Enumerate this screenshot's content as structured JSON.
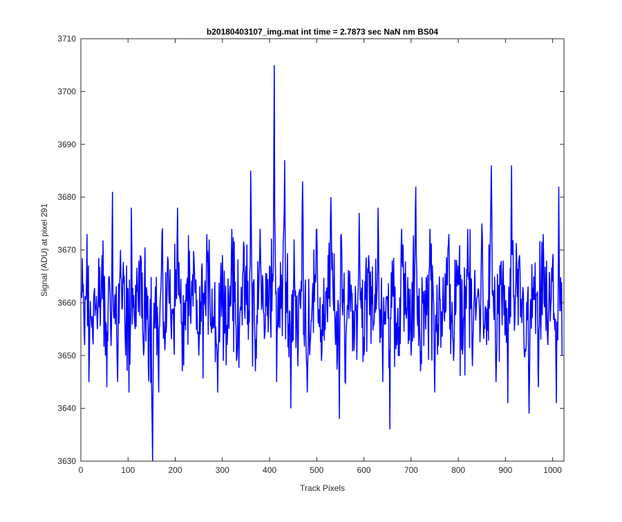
{
  "figure": {
    "background": "#ffffff"
  },
  "chart_data": {
    "type": "line",
    "title": "b20180403107_img.mat int time = 2.7873 sec  NaN nm BS04",
    "xlabel": "Track Pixels",
    "ylabel": "Signal (ADU) at pixel 291",
    "xlim": [
      0,
      1024
    ],
    "ylim": [
      3630,
      3710
    ],
    "xticks": [
      0,
      100,
      200,
      300,
      400,
      500,
      600,
      700,
      800,
      900,
      1000
    ],
    "yticks": [
      3630,
      3640,
      3650,
      3660,
      3670,
      3680,
      3690,
      3700,
      3710
    ],
    "grid": false,
    "legend": "none",
    "series": [
      {
        "color": "#0000ff",
        "x": [
          1,
          8,
          13,
          17,
          28,
          35,
          45,
          52,
          55,
          60,
          67,
          70,
          78,
          84,
          95,
          102,
          107,
          115,
          123,
          133,
          140,
          152,
          153,
          155,
          165,
          172,
          178,
          185,
          195,
          205,
          215,
          225,
          233,
          240,
          250,
          262,
          272,
          281,
          290,
          300,
          310,
          320,
          330,
          340,
          350,
          355,
          360,
          370,
          380,
          390,
          400,
          410,
          415,
          420,
          432,
          440,
          445,
          452,
          460,
          470,
          480,
          490,
          500,
          510,
          520,
          530,
          540,
          548,
          552,
          560,
          570,
          580,
          590,
          600,
          610,
          620,
          630,
          640,
          650,
          655,
          660,
          670,
          680,
          690,
          700,
          710,
          720,
          730,
          740,
          750,
          760,
          770,
          780,
          790,
          800,
          810,
          820,
          830,
          840,
          850,
          860,
          870,
          880,
          890,
          900,
          905,
          913,
          920,
          930,
          940,
          950,
          960,
          970,
          980,
          990,
          1000,
          1008,
          1013,
          1020
        ],
        "y": [
          3662,
          3652,
          3673,
          3645,
          3662,
          3655,
          3669,
          3650,
          3644,
          3665,
          3681,
          3657,
          3645,
          3670,
          3650,
          3643,
          3678,
          3655,
          3668,
          3650,
          3662,
          3630,
          3644,
          3660,
          3643,
          3673,
          3651,
          3668,
          3658,
          3678,
          3647,
          3664,
          3656,
          3668,
          3650,
          3661,
          3672,
          3656,
          3643,
          3669,
          3652,
          3674,
          3649,
          3663,
          3667,
          3653,
          3685,
          3647,
          3674,
          3654,
          3667,
          3705,
          3645,
          3660,
          3687,
          3656,
          3640,
          3672,
          3648,
          3683,
          3643,
          3659,
          3674,
          3649,
          3661,
          3680,
          3652,
          3638,
          3673,
          3645,
          3666,
          3653,
          3677,
          3650,
          3669,
          3656,
          3678,
          3645,
          3661,
          3636,
          3668,
          3652,
          3674,
          3657,
          3650,
          3682,
          3647,
          3660,
          3674,
          3643,
          3665,
          3658,
          3673,
          3649,
          3667,
          3652,
          3674,
          3648,
          3661,
          3675,
          3652,
          3686,
          3645,
          3667,
          3655,
          3641,
          3686,
          3657,
          3669,
          3650,
          3639,
          3665,
          3644,
          3673,
          3652,
          3668,
          3641,
          3682,
          3650
        ]
      }
    ]
  }
}
